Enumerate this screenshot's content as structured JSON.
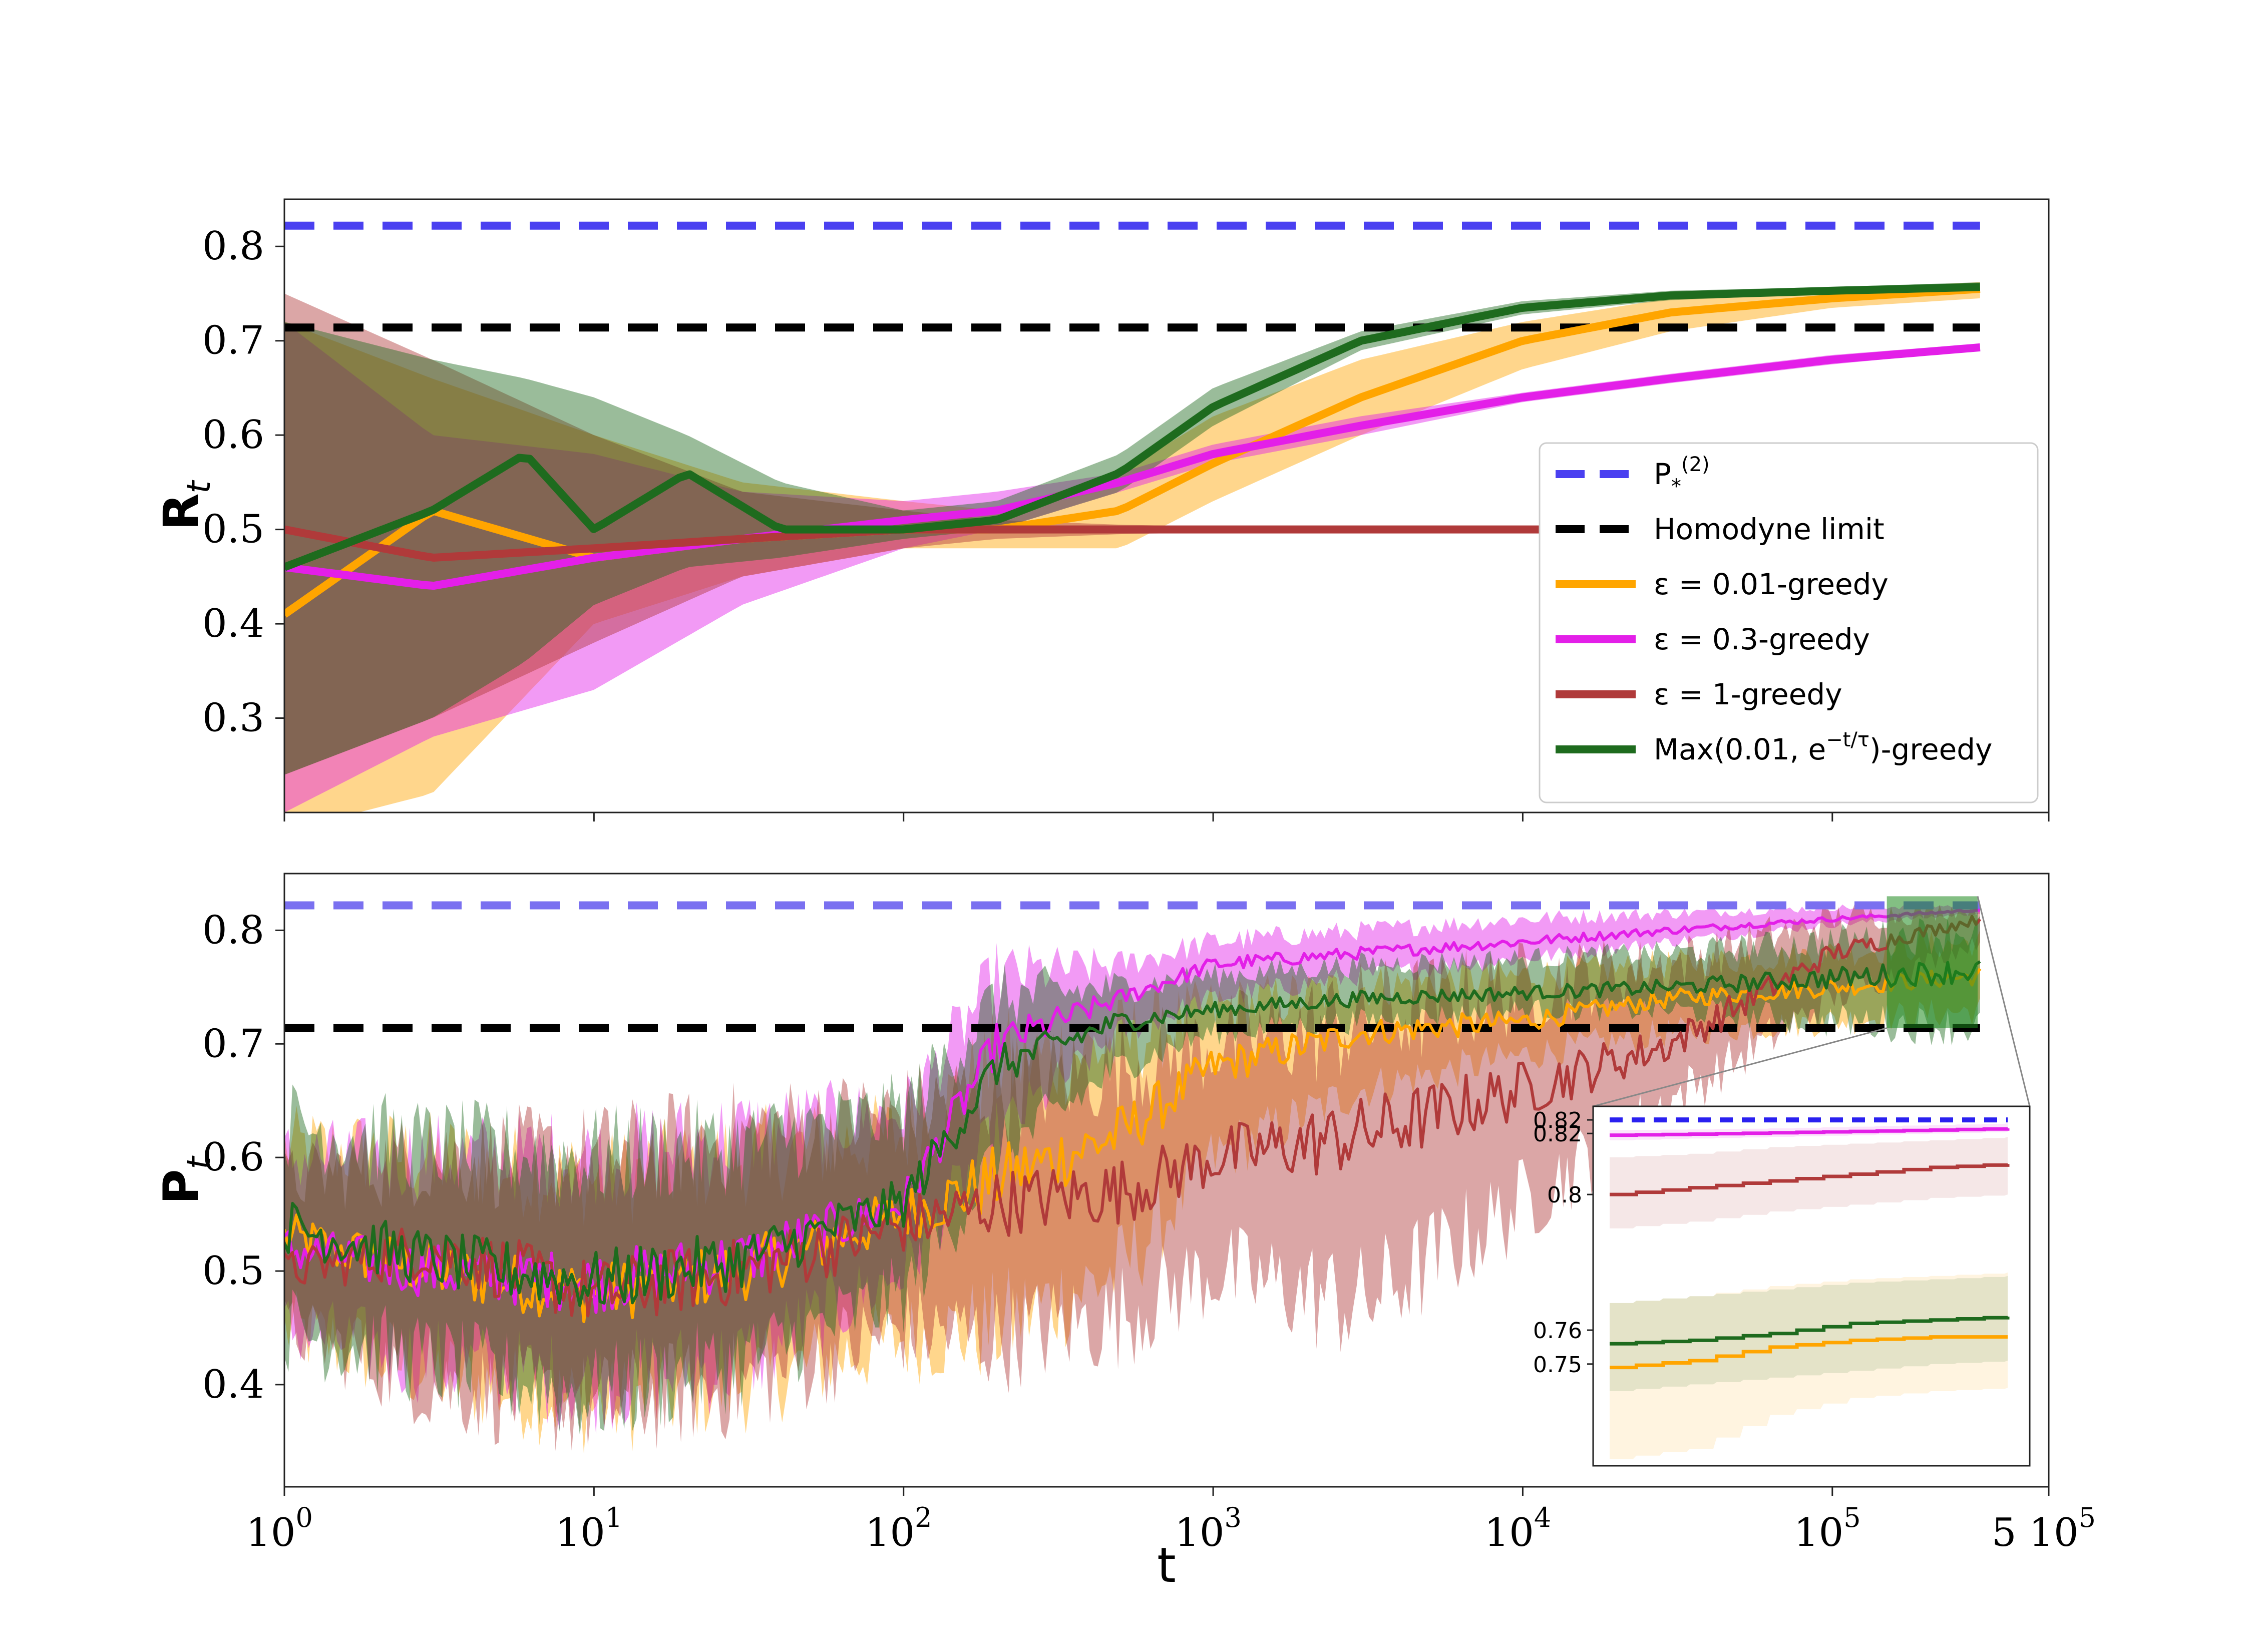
{
  "chart_data": [
    {
      "type": "line",
      "panel": "top",
      "ylabel": "R",
      "ylabel_sub": "t",
      "xscale": "log",
      "xlim": [
        1,
        500000
      ],
      "ylim": [
        0.2,
        0.85
      ],
      "yticks": [
        0.3,
        0.4,
        0.5,
        0.6,
        0.7,
        0.8
      ],
      "ytick_labels": [
        "0.3",
        "0.4",
        "0.5",
        "0.6",
        "0.7",
        "0.8"
      ],
      "reference_lines": [
        {
          "name": "P_*^(2)",
          "value": 0.822,
          "color": "#4a40f0",
          "style": "dashed"
        },
        {
          "name": "Homodyne limit",
          "value": 0.714,
          "color": "#000000",
          "style": "dashed"
        }
      ],
      "series": [
        {
          "name": "ε = 0.01-greedy",
          "color": "#ffa500",
          "x": [
            1,
            3,
            10,
            30,
            100,
            200,
            500,
            1000,
            3000,
            10000,
            30000,
            100000,
            300000
          ],
          "y": [
            0.41,
            0.52,
            0.47,
            0.49,
            0.5,
            0.5,
            0.52,
            0.57,
            0.64,
            0.7,
            0.73,
            0.745,
            0.755
          ],
          "lower": [
            0.18,
            0.22,
            0.4,
            0.45,
            0.48,
            0.48,
            0.48,
            0.53,
            0.6,
            0.67,
            0.71,
            0.735,
            0.745
          ],
          "upper": [
            0.72,
            0.66,
            0.6,
            0.55,
            0.53,
            0.52,
            0.56,
            0.62,
            0.68,
            0.72,
            0.745,
            0.755,
            0.762
          ]
        },
        {
          "name": "ε = 0.3-greedy",
          "color": "#e31fe8",
          "x": [
            1,
            3,
            10,
            30,
            100,
            200,
            500,
            1000,
            3000,
            10000,
            30000,
            100000,
            300000
          ],
          "y": [
            0.46,
            0.44,
            0.47,
            0.49,
            0.51,
            0.52,
            0.55,
            0.58,
            0.61,
            0.64,
            0.66,
            0.68,
            0.693
          ],
          "lower": [
            0.2,
            0.28,
            0.33,
            0.42,
            0.48,
            0.5,
            0.54,
            0.57,
            0.6,
            0.635,
            0.655,
            0.675,
            0.69
          ],
          "upper": [
            0.72,
            0.6,
            0.58,
            0.54,
            0.53,
            0.54,
            0.56,
            0.59,
            0.62,
            0.645,
            0.665,
            0.685,
            0.697
          ]
        },
        {
          "name": "ε = 1-greedy",
          "color": "#b03a3a",
          "x": [
            1,
            3,
            10,
            30,
            100,
            200,
            500,
            1000,
            3000,
            10000,
            30000,
            100000,
            300000
          ],
          "y": [
            0.5,
            0.47,
            0.48,
            0.49,
            0.5,
            0.5,
            0.5,
            0.5,
            0.5,
            0.5,
            0.5,
            0.5,
            0.5
          ],
          "lower": [
            0.24,
            0.3,
            0.38,
            0.45,
            0.48,
            0.49,
            0.495,
            0.497,
            0.498,
            0.499,
            0.5,
            0.5,
            0.5
          ],
          "upper": [
            0.75,
            0.68,
            0.6,
            0.54,
            0.52,
            0.51,
            0.505,
            0.503,
            0.502,
            0.501,
            0.5,
            0.5,
            0.5
          ]
        },
        {
          "name": "Max(0.01, e^{-t/τ})-greedy",
          "color": "#1e6b1e",
          "x": [
            1,
            3,
            6,
            10,
            20,
            40,
            100,
            200,
            500,
            1000,
            3000,
            10000,
            30000,
            100000,
            300000
          ],
          "y": [
            0.46,
            0.52,
            0.58,
            0.5,
            0.56,
            0.5,
            0.5,
            0.51,
            0.56,
            0.63,
            0.7,
            0.735,
            0.748,
            0.753,
            0.757
          ],
          "lower": [
            0.24,
            0.3,
            0.36,
            0.42,
            0.46,
            0.47,
            0.49,
            0.5,
            0.54,
            0.61,
            0.69,
            0.728,
            0.743,
            0.75,
            0.753
          ],
          "upper": [
            0.72,
            0.68,
            0.66,
            0.64,
            0.6,
            0.55,
            0.52,
            0.53,
            0.58,
            0.65,
            0.71,
            0.742,
            0.753,
            0.757,
            0.762
          ]
        }
      ],
      "legend": {
        "placement": "lower-right",
        "entries": [
          {
            "label": "P",
            "label_sub": "*",
            "label_sup": "(2)",
            "color": "#4a40f0",
            "style": "dashed"
          },
          {
            "label": "Homodyne limit",
            "color": "#000000",
            "style": "dashed"
          },
          {
            "label": "ε = 0.01-greedy",
            "color": "#ffa500",
            "style": "solid"
          },
          {
            "label": "ε = 0.3-greedy",
            "color": "#e31fe8",
            "style": "solid"
          },
          {
            "label": "ε = 1-greedy",
            "color": "#b03a3a",
            "style": "solid"
          },
          {
            "label": "Max(0.01, e",
            "label_sup": "−t/τ",
            "label_tail": ")-greedy",
            "color": "#1e6b1e",
            "style": "solid"
          }
        ]
      }
    },
    {
      "type": "line",
      "panel": "bottom",
      "ylabel": "P",
      "ylabel_sub": "t",
      "xlabel": "t",
      "xscale": "log",
      "xlim": [
        1,
        500000
      ],
      "ylim": [
        0.31,
        0.85
      ],
      "yticks": [
        0.4,
        0.5,
        0.6,
        0.7,
        0.8
      ],
      "ytick_labels": [
        "0.4",
        "0.5",
        "0.6",
        "0.7",
        "0.8"
      ],
      "xticks": [
        1,
        10,
        100,
        1000,
        10000,
        100000,
        500000
      ],
      "xtick_labels": [
        {
          "base": "10",
          "exp": "0"
        },
        {
          "base": "10",
          "exp": "1"
        },
        {
          "base": "10",
          "exp": "2"
        },
        {
          "base": "10",
          "exp": "3"
        },
        {
          "base": "10",
          "exp": "4"
        },
        {
          "base": "10",
          "exp": "5"
        },
        {
          "base": "5 10",
          "exp": "5"
        }
      ],
      "reference_lines": [
        {
          "name": "P_*^(2)",
          "value": 0.822,
          "color": "#7a70f0",
          "style": "dashed"
        },
        {
          "name": "Homodyne limit",
          "value": 0.714,
          "color": "#000000",
          "style": "dashed"
        }
      ],
      "series": [
        {
          "name": "ε = 0.01-greedy",
          "color": "#ffa500",
          "x": [
            1,
            3,
            10,
            30,
            100,
            200,
            500,
            1000,
            3000,
            10000,
            30000,
            100000,
            300000
          ],
          "y": [
            0.53,
            0.5,
            0.48,
            0.5,
            0.55,
            0.58,
            0.62,
            0.68,
            0.71,
            0.72,
            0.74,
            0.75,
            0.76
          ],
          "lower": [
            0.45,
            0.41,
            0.38,
            0.4,
            0.44,
            0.45,
            0.5,
            0.6,
            0.66,
            0.69,
            0.71,
            0.72,
            0.73
          ],
          "upper": [
            0.61,
            0.6,
            0.58,
            0.6,
            0.62,
            0.68,
            0.7,
            0.73,
            0.75,
            0.76,
            0.77,
            0.78,
            0.79
          ]
        },
        {
          "name": "ε = 0.3-greedy",
          "color": "#e31fe8",
          "x": [
            1,
            3,
            10,
            30,
            100,
            200,
            500,
            1000,
            3000,
            10000,
            30000,
            100000,
            300000
          ],
          "y": [
            0.52,
            0.5,
            0.49,
            0.51,
            0.56,
            0.7,
            0.74,
            0.77,
            0.78,
            0.79,
            0.8,
            0.81,
            0.818
          ],
          "lower": [
            0.45,
            0.42,
            0.4,
            0.42,
            0.5,
            0.62,
            0.71,
            0.74,
            0.76,
            0.775,
            0.79,
            0.805,
            0.815
          ],
          "upper": [
            0.6,
            0.6,
            0.6,
            0.62,
            0.64,
            0.76,
            0.77,
            0.79,
            0.8,
            0.81,
            0.815,
            0.82,
            0.822
          ]
        },
        {
          "name": "ε = 1-greedy",
          "color": "#b03a3a",
          "x": [
            1,
            3,
            10,
            30,
            100,
            200,
            500,
            1000,
            3000,
            10000,
            30000,
            100000,
            300000
          ],
          "y": [
            0.5,
            0.52,
            0.48,
            0.5,
            0.54,
            0.56,
            0.57,
            0.6,
            0.62,
            0.66,
            0.7,
            0.78,
            0.81
          ],
          "lower": [
            0.45,
            0.4,
            0.38,
            0.4,
            0.45,
            0.44,
            0.46,
            0.5,
            0.47,
            0.56,
            0.65,
            0.74,
            0.79
          ],
          "upper": [
            0.58,
            0.6,
            0.6,
            0.62,
            0.64,
            0.66,
            0.68,
            0.7,
            0.72,
            0.75,
            0.77,
            0.81,
            0.82
          ]
        },
        {
          "name": "Max(0.01, e^{-t/τ})-greedy",
          "color": "#1e6b1e",
          "x": [
            1,
            3,
            10,
            30,
            100,
            200,
            500,
            1000,
            3000,
            10000,
            30000,
            100000,
            300000
          ],
          "y": [
            0.54,
            0.51,
            0.49,
            0.51,
            0.56,
            0.68,
            0.72,
            0.73,
            0.74,
            0.745,
            0.75,
            0.758,
            0.765
          ],
          "lower": [
            0.45,
            0.42,
            0.39,
            0.42,
            0.48,
            0.6,
            0.68,
            0.71,
            0.72,
            0.73,
            0.73,
            0.72,
            0.715
          ],
          "upper": [
            0.63,
            0.61,
            0.6,
            0.61,
            0.64,
            0.74,
            0.75,
            0.76,
            0.77,
            0.775,
            0.78,
            0.79,
            0.8
          ]
        }
      ],
      "highlight_region": {
        "x": [
          150000,
          600000
        ],
        "y": [
          0.714,
          0.83
        ],
        "color": "#1e8b1e"
      }
    },
    {
      "type": "line",
      "panel": "inset",
      "ylim": [
        0.72,
        0.826
      ],
      "yticks": [
        0.75,
        0.76,
        0.8,
        0.818,
        0.822
      ],
      "ytick_labels": [
        "0.75",
        "0.76",
        "0.8",
        "0.82",
        "0.82"
      ],
      "reference_lines": [
        {
          "name": "P_*^(2)",
          "value": 0.822,
          "color": "#2a20f0",
          "style": "dashed"
        }
      ],
      "series": [
        {
          "name": "ε = 0.3-greedy",
          "color": "#e31fe8",
          "x": [
            0,
            0.2,
            0.4,
            0.6,
            0.8,
            1
          ],
          "y": [
            0.8175,
            0.8178,
            0.8182,
            0.8186,
            0.819,
            0.8195
          ],
          "lower": [
            0.816,
            0.8165,
            0.817,
            0.8175,
            0.818,
            0.8185
          ],
          "upper": [
            0.819,
            0.8192,
            0.8195,
            0.82,
            0.8205,
            0.821
          ]
        },
        {
          "name": "ε = 1-greedy",
          "color": "#b03a3a",
          "x": [
            0,
            0.2,
            0.4,
            0.6,
            0.8,
            1
          ],
          "y": [
            0.8,
            0.802,
            0.804,
            0.806,
            0.808,
            0.809
          ],
          "lower": [
            0.79,
            0.792,
            0.795,
            0.797,
            0.799,
            0.8
          ],
          "upper": [
            0.811,
            0.812,
            0.814,
            0.815,
            0.816,
            0.817
          ]
        },
        {
          "name": "ε = 0.01-greedy",
          "color": "#ffa500",
          "x": [
            0,
            0.2,
            0.4,
            0.6,
            0.8,
            1
          ],
          "y": [
            0.749,
            0.751,
            0.755,
            0.757,
            0.758,
            0.758
          ],
          "lower": [
            0.722,
            0.725,
            0.735,
            0.74,
            0.742,
            0.743
          ],
          "upper": [
            0.768,
            0.77,
            0.773,
            0.775,
            0.776,
            0.777
          ]
        },
        {
          "name": "Max(0.01, e^{-t/τ})-greedy",
          "color": "#1e6b1e",
          "x": [
            0,
            0.2,
            0.4,
            0.6,
            0.8,
            1
          ],
          "y": [
            0.756,
            0.757,
            0.759,
            0.762,
            0.763,
            0.764
          ],
          "lower": [
            0.742,
            0.744,
            0.746,
            0.748,
            0.75,
            0.751
          ],
          "upper": [
            0.768,
            0.77,
            0.772,
            0.774,
            0.775,
            0.776
          ]
        }
      ]
    }
  ]
}
